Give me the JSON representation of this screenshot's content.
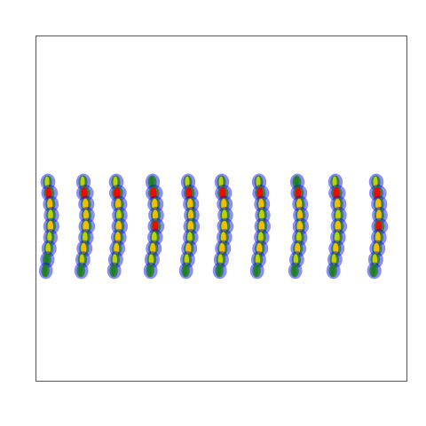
{
  "chart_data": {
    "type": "heatmap",
    "title": "",
    "xlabel": "",
    "ylabel": "",
    "grid": false,
    "legend": "none",
    "colormap": [
      "#0000ff",
      "#1f7f1f",
      "#c8d400",
      "#ffc000",
      "#ff0000"
    ],
    "series": [
      {
        "values": [
          0.45,
          0.8,
          0.62,
          0.55,
          0.7,
          0.4,
          0.5,
          0.35,
          0.25
        ]
      },
      {
        "values": [
          0.4,
          0.92,
          0.7,
          0.6,
          0.78,
          0.55,
          0.65,
          0.45,
          0.3
        ]
      },
      {
        "values": [
          0.42,
          0.95,
          0.72,
          0.58,
          0.74,
          0.6,
          0.62,
          0.48,
          0.32
        ]
      },
      {
        "values": [
          0.38,
          0.9,
          0.68,
          0.62,
          0.8,
          0.58,
          0.66,
          0.5,
          0.3
        ]
      },
      {
        "values": [
          0.4,
          0.88,
          0.7,
          0.6,
          0.76,
          0.56,
          0.64,
          0.46,
          0.28
        ]
      },
      {
        "values": [
          0.42,
          0.86,
          0.66,
          0.58,
          0.78,
          0.6,
          0.68,
          0.5,
          0.3
        ]
      },
      {
        "values": [
          0.4,
          0.82,
          0.64,
          0.56,
          0.74,
          0.58,
          0.66,
          0.48,
          0.3
        ]
      },
      {
        "values": [
          0.38,
          0.8,
          0.66,
          0.6,
          0.72,
          0.56,
          0.62,
          0.46,
          0.28
        ]
      },
      {
        "values": [
          0.4,
          0.9,
          0.7,
          0.58,
          0.76,
          0.58,
          0.64,
          0.46,
          0.3
        ]
      },
      {
        "values": [
          0.42,
          0.94,
          0.72,
          0.62,
          0.8,
          0.6,
          0.66,
          0.5,
          0.34
        ]
      }
    ]
  }
}
